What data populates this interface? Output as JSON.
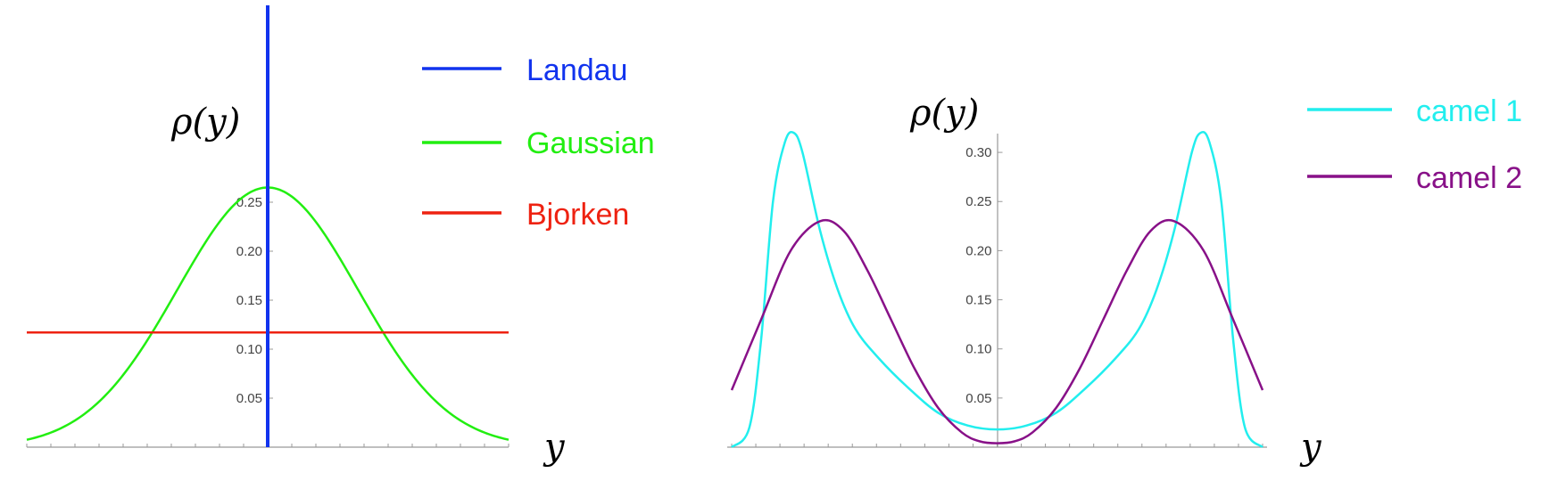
{
  "chart_data": [
    {
      "type": "line",
      "ylabel": "ρ(y)",
      "xlabel": "y",
      "x_range": [
        -4,
        4
      ],
      "ylim": [
        0,
        0.32
      ],
      "y_ticks": [
        "0.05",
        "0.10",
        "0.15",
        "0.20",
        "0.25"
      ],
      "legend_position": "top-right",
      "series": [
        {
          "name": "Landau",
          "color": "#1133ee",
          "kind": "vertical_line",
          "x": 0
        },
        {
          "name": "Gaussian",
          "color": "#22ee11",
          "kind": "gaussian",
          "amplitude": 0.265,
          "sigma": 1.5
        },
        {
          "name": "Bjorken",
          "color": "#ee2211",
          "kind": "constant",
          "value": 0.117
        }
      ]
    },
    {
      "type": "line",
      "ylabel": "ρ(y)",
      "xlabel": "y",
      "x_range": [
        -4.5,
        4.5
      ],
      "ylim": [
        0,
        0.33
      ],
      "y_ticks": [
        "0.05",
        "0.10",
        "0.15",
        "0.20",
        "0.25",
        "0.30"
      ],
      "legend_position": "top-right",
      "series": [
        {
          "name": "camel 1",
          "color": "#22eeee",
          "x": [
            -4.5,
            -4.2,
            -4.0,
            -3.8,
            -3.6,
            -3.45,
            -3.3,
            -3.0,
            -2.7,
            -2.4,
            -2.0,
            -1.5,
            -1.0,
            -0.5,
            0,
            0.5,
            1.0,
            1.5,
            2.0,
            2.4,
            2.7,
            3.0,
            3.3,
            3.45,
            3.6,
            3.8,
            4.0,
            4.2,
            4.5
          ],
          "y": [
            0.0,
            0.02,
            0.11,
            0.25,
            0.31,
            0.32,
            0.3,
            0.22,
            0.16,
            0.12,
            0.09,
            0.06,
            0.035,
            0.022,
            0.018,
            0.022,
            0.035,
            0.06,
            0.09,
            0.12,
            0.16,
            0.22,
            0.3,
            0.32,
            0.31,
            0.25,
            0.11,
            0.02,
            0.0
          ]
        },
        {
          "name": "camel 2",
          "color": "#881188",
          "x": [
            -4.5,
            -4.0,
            -3.5,
            -3.0,
            -2.6,
            -2.2,
            -1.8,
            -1.4,
            -1.0,
            -0.6,
            -0.3,
            0,
            0.3,
            0.6,
            1.0,
            1.4,
            1.8,
            2.2,
            2.6,
            3.0,
            3.5,
            4.0,
            4.5
          ],
          "y": [
            0.058,
            0.13,
            0.2,
            0.23,
            0.22,
            0.18,
            0.13,
            0.08,
            0.04,
            0.015,
            0.006,
            0.004,
            0.006,
            0.015,
            0.04,
            0.08,
            0.13,
            0.18,
            0.22,
            0.23,
            0.2,
            0.13,
            0.058
          ]
        }
      ]
    }
  ]
}
